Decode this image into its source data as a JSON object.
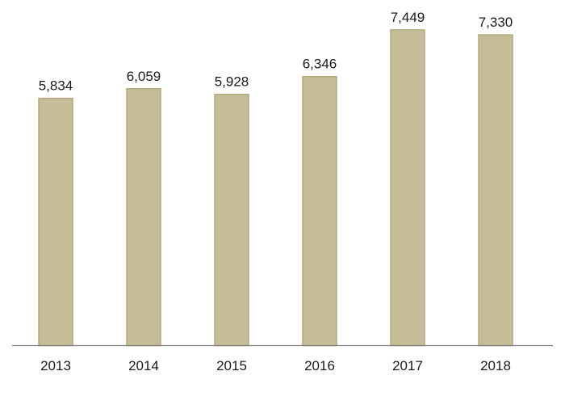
{
  "chart_data": {
    "type": "bar",
    "categories": [
      "2013",
      "2014",
      "2015",
      "2016",
      "2017",
      "2018"
    ],
    "values": [
      5834,
      6059,
      5928,
      6346,
      7449,
      7330
    ],
    "value_labels": [
      "5,834",
      "6,059",
      "5,928",
      "6,346",
      "7,449",
      "7,330"
    ],
    "title": "",
    "xlabel": "",
    "ylabel": "",
    "ylim": [
      0,
      8000
    ],
    "grid": false,
    "legend": "none",
    "colors": {
      "bar_fill": "#c4bd97",
      "bar_stroke": "#b3aa7d",
      "axis": "#7f7f7f",
      "text": "#1a1a1a"
    }
  }
}
